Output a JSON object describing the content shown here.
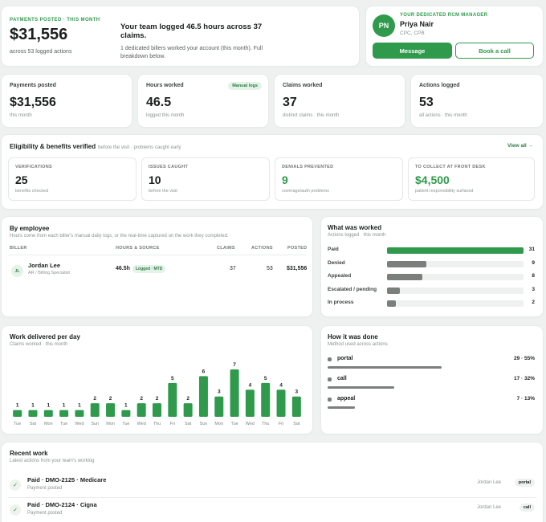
{
  "hero": {
    "label": "PAYMENTS POSTED · THIS MONTH",
    "amount": "$31,556",
    "sub": "across 53 logged actions",
    "headline": "Your team logged 46.5 hours across 37 claims.",
    "desc": "1 dedicated billers worked your account (this month). Full breakdown below."
  },
  "manager": {
    "initials": "PN",
    "role": "YOUR DEDICATED RCM MANAGER",
    "name": "Priya Nair",
    "cred": "CPC, CPB",
    "message_label": "Message",
    "call_label": "Book a call"
  },
  "stats": [
    {
      "label": "Payments posted",
      "value": "$31,556",
      "note": "this month",
      "tag": ""
    },
    {
      "label": "Hours worked",
      "value": "46.5",
      "note": "logged this month",
      "tag": "Manual logs"
    },
    {
      "label": "Claims worked",
      "value": "37",
      "note": "distinct claims · this month",
      "tag": ""
    },
    {
      "label": "Actions logged",
      "value": "53",
      "note": "all actions · this month",
      "tag": ""
    }
  ],
  "eligibility": {
    "title": "Eligibility & benefits verified",
    "sub": "before the visit · problems caught early",
    "view_all": "View all →",
    "tiles": [
      {
        "label": "VERIFICATIONS",
        "value": "25",
        "note": "benefits checked"
      },
      {
        "label": "ISSUES CAUGHT",
        "value": "10",
        "note": "before the visit"
      },
      {
        "label": "DENIALS PREVENTED",
        "value": "9",
        "note": "coverage/auth problems"
      },
      {
        "label": "TO COLLECT AT FRONT DESK",
        "value": "$4,500",
        "note": "patient responsibility surfaced"
      }
    ]
  },
  "employee": {
    "title": "By employee",
    "sub": "Hours come from each biller's manual daily logs, or the real-time captured on the work they completed.",
    "headers": {
      "biller": "BILLER",
      "hours": "HOURS & SOURCE",
      "claims": "CLAIMS",
      "actions": "ACTIONS",
      "posted": "POSTED"
    },
    "rows": [
      {
        "initials": "JL",
        "name": "Jordan Lee",
        "role": "AR / Billing Specialist",
        "hours": "46.5h",
        "source": "Logged · MTD",
        "claims": "37",
        "actions": "53",
        "posted": "$31,556"
      }
    ]
  },
  "worked": {
    "title": "What was worked",
    "sub": "Actions logged · this month",
    "rows": [
      {
        "label": "Paid",
        "value": 31,
        "color": "#2f9a4c"
      },
      {
        "label": "Denied",
        "value": 9,
        "color": "#7a7f7c"
      },
      {
        "label": "Appealed",
        "value": 8,
        "color": "#7a7f7c"
      },
      {
        "label": "Escalated / pending",
        "value": 3,
        "color": "#7a7f7c"
      },
      {
        "label": "In process",
        "value": 2,
        "color": "#7a7f7c"
      }
    ]
  },
  "daily": {
    "title": "Work delivered per day",
    "sub": "Claims worked · this month"
  },
  "chart_data": {
    "type": "bar",
    "categories": [
      "Tue",
      "Sat",
      "Mon",
      "Tue",
      "Wed",
      "Sun",
      "Mon",
      "Tue",
      "Wed",
      "Thu",
      "Fri",
      "Sat",
      "Sun",
      "Mon",
      "Tue",
      "Wed",
      "Thu",
      "Fri",
      "Sat"
    ],
    "values": [
      1,
      1,
      1,
      1,
      1,
      2,
      2,
      1,
      2,
      2,
      5,
      2,
      6,
      3,
      7,
      4,
      5,
      4,
      3
    ],
    "title": "Work delivered per day",
    "xlabel": "",
    "ylabel": "",
    "ylim": [
      0,
      7
    ],
    "color": "#2f9a4c"
  },
  "how": {
    "title": "How it was done",
    "sub": "Method used across actions",
    "rows": [
      {
        "label": "portal",
        "count": "29 · 55%",
        "pct": 55
      },
      {
        "label": "call",
        "count": "17 · 32%",
        "pct": 32
      },
      {
        "label": "appeal",
        "count": "7 · 13%",
        "pct": 13
      }
    ]
  },
  "recent": {
    "title": "Recent work",
    "sub": "Latest actions from your team's worklog",
    "rows": [
      {
        "title": "Paid · DMO-2125 · Medicare",
        "status": "Payment posted",
        "who": "Jordan Lee",
        "via": "portal"
      },
      {
        "title": "Paid · DMO-2124 · Cigna",
        "status": "Payment posted",
        "who": "Jordan Lee",
        "via": "call"
      }
    ]
  }
}
